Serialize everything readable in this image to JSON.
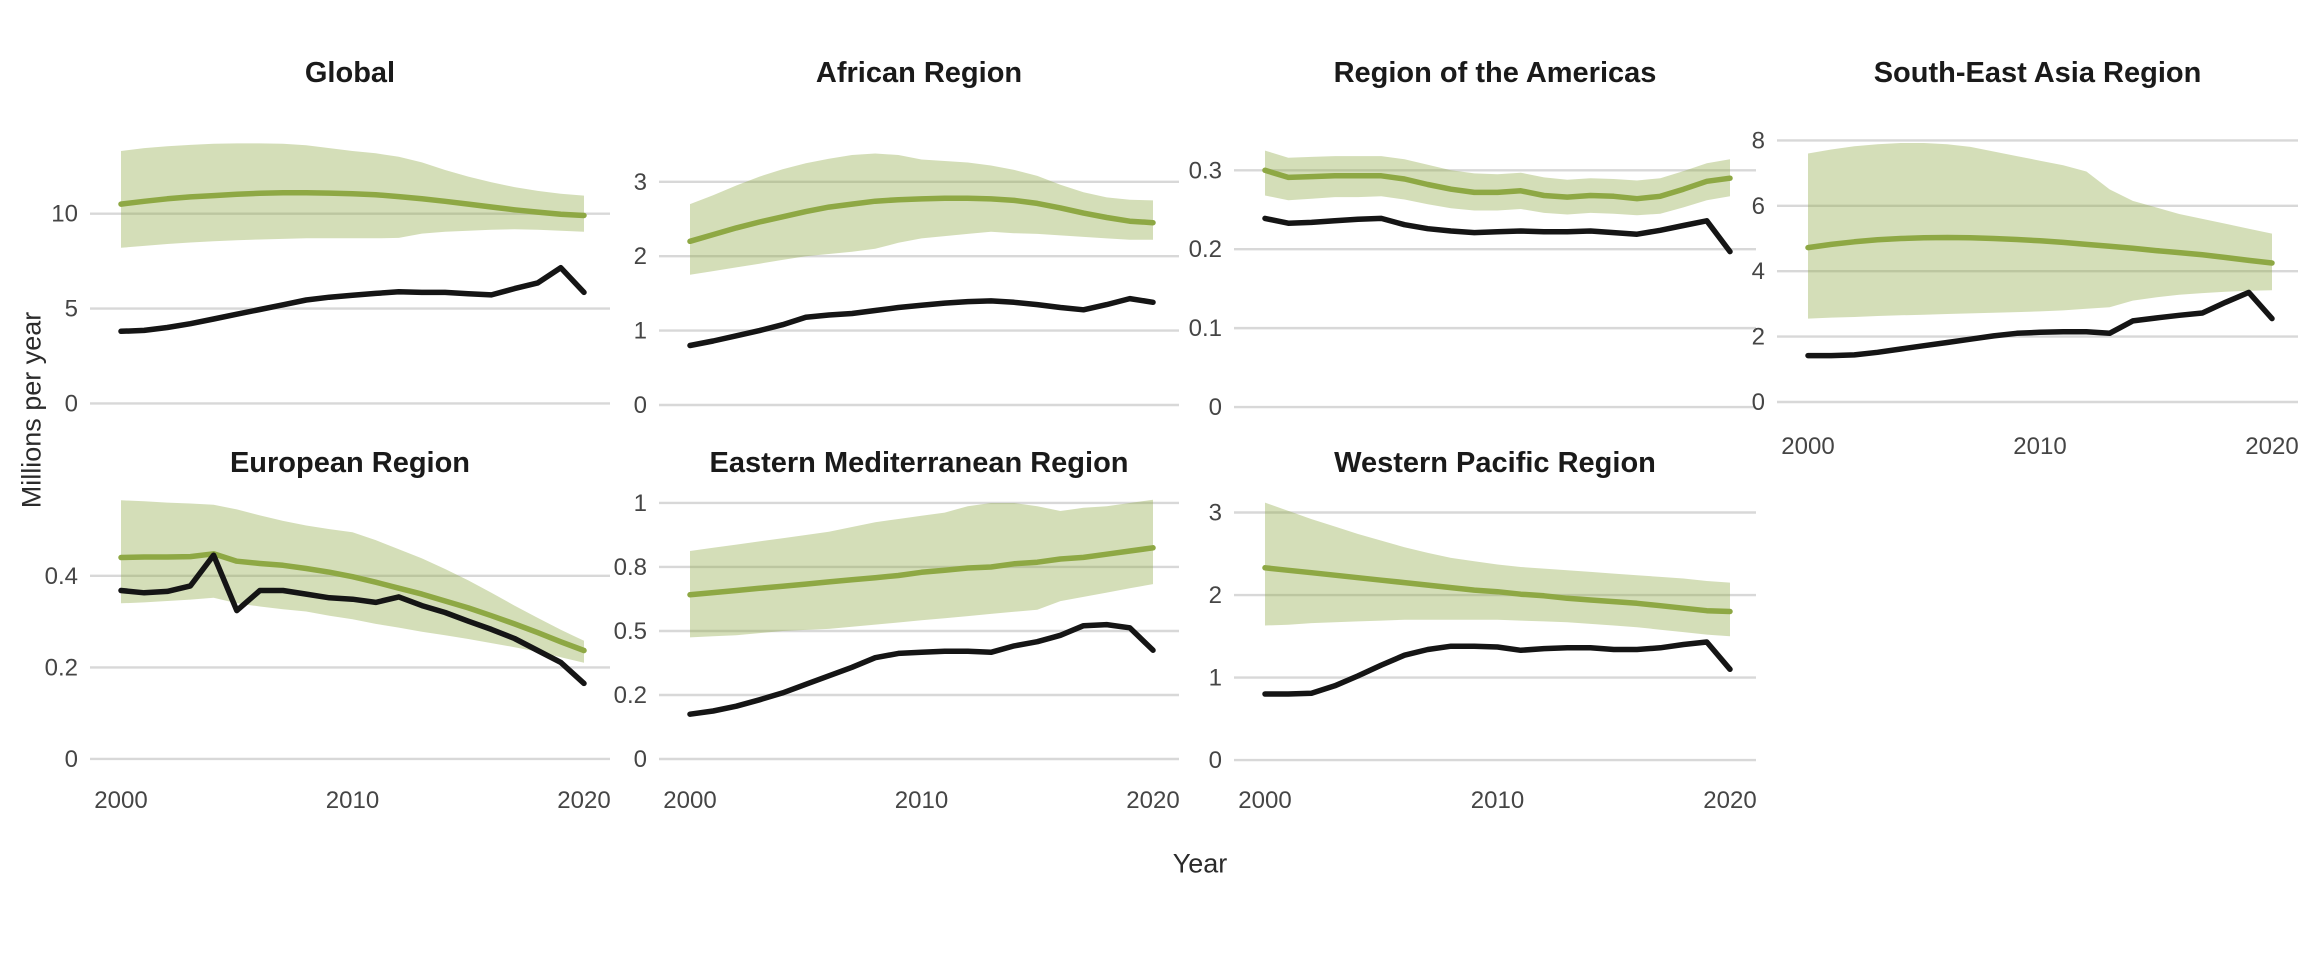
{
  "figure": {
    "y_axis_title": "Millions per year",
    "x_axis_title": "Year",
    "colors": {
      "green_line": "#8EA844",
      "band_fill": "#8EA844",
      "band_opacity": 0.38,
      "black_line": "#151515",
      "gridline": "#D8D8D8",
      "tick_text": "#454545",
      "title_text": "#1A1A1A",
      "background": "#FFFFFF"
    }
  },
  "chart_data": {
    "type": "line",
    "xlabel": "Year",
    "ylabel": "Millions per year",
    "xticks": [
      2000,
      2010,
      2020
    ],
    "grid": "horizontal-only",
    "legend": "none",
    "years": [
      2000,
      2001,
      2002,
      2003,
      2004,
      2005,
      2006,
      2007,
      2008,
      2009,
      2010,
      2011,
      2012,
      2013,
      2014,
      2015,
      2016,
      2017,
      2018,
      2019,
      2020
    ],
    "panels": [
      {
        "title": "Global",
        "yticks": [
          0,
          5,
          10
        ],
        "series": [
          {
            "name": "green_line",
            "color": "#8EA844",
            "values": [
              10.5,
              10.65,
              10.78,
              10.88,
              10.95,
              11.02,
              11.07,
              11.1,
              11.1,
              11.08,
              11.05,
              11.0,
              10.9,
              10.78,
              10.65,
              10.5,
              10.35,
              10.2,
              10.08,
              9.97,
              9.9
            ]
          },
          {
            "name": "black_line",
            "color": "#151515",
            "values": [
              3.8,
              3.85,
              4.0,
              4.2,
              4.45,
              4.7,
              4.95,
              5.2,
              5.45,
              5.6,
              5.7,
              5.8,
              5.88,
              5.85,
              5.85,
              5.78,
              5.72,
              6.05,
              6.35,
              7.15,
              5.85
            ]
          }
        ],
        "band": {
          "name": "uncertainty_interval",
          "upper": [
            13.3,
            13.45,
            13.55,
            13.62,
            13.68,
            13.7,
            13.7,
            13.68,
            13.6,
            13.45,
            13.3,
            13.18,
            13.0,
            12.7,
            12.3,
            11.95,
            11.65,
            11.4,
            11.2,
            11.05,
            10.95
          ],
          "lower": [
            8.2,
            8.3,
            8.4,
            8.48,
            8.55,
            8.6,
            8.64,
            8.67,
            8.7,
            8.7,
            8.7,
            8.7,
            8.72,
            8.95,
            9.05,
            9.1,
            9.15,
            9.18,
            9.15,
            9.1,
            9.05
          ]
        }
      },
      {
        "title": "African Region",
        "yticks": [
          0,
          1,
          2,
          3
        ],
        "series": [
          {
            "name": "green_line",
            "color": "#8EA844",
            "values": [
              2.2,
              2.29,
              2.38,
              2.46,
              2.53,
              2.6,
              2.66,
              2.7,
              2.74,
              2.76,
              2.77,
              2.78,
              2.78,
              2.77,
              2.75,
              2.71,
              2.65,
              2.58,
              2.52,
              2.47,
              2.45
            ]
          },
          {
            "name": "black_line",
            "color": "#151515",
            "values": [
              0.8,
              0.86,
              0.93,
              1.0,
              1.08,
              1.18,
              1.21,
              1.23,
              1.27,
              1.31,
              1.34,
              1.37,
              1.39,
              1.4,
              1.38,
              1.35,
              1.31,
              1.28,
              1.35,
              1.43,
              1.38
            ]
          }
        ],
        "band": {
          "name": "uncertainty_interval",
          "upper": [
            2.7,
            2.82,
            2.95,
            3.07,
            3.17,
            3.25,
            3.31,
            3.36,
            3.38,
            3.36,
            3.3,
            3.28,
            3.26,
            3.22,
            3.16,
            3.08,
            2.96,
            2.86,
            2.79,
            2.76,
            2.75
          ],
          "lower": [
            1.75,
            1.8,
            1.85,
            1.9,
            1.95,
            2.0,
            2.03,
            2.06,
            2.1,
            2.18,
            2.24,
            2.27,
            2.3,
            2.33,
            2.31,
            2.3,
            2.28,
            2.26,
            2.24,
            2.22,
            2.22
          ]
        }
      },
      {
        "title": "Region of the Americas",
        "yticks": [
          0,
          0.1,
          0.2,
          0.3
        ],
        "series": [
          {
            "name": "green_line",
            "color": "#8EA844",
            "values": [
              0.3,
              0.291,
              0.292,
              0.293,
              0.293,
              0.293,
              0.289,
              0.282,
              0.276,
              0.272,
              0.272,
              0.274,
              0.268,
              0.266,
              0.268,
              0.267,
              0.264,
              0.267,
              0.276,
              0.286,
              0.29
            ]
          },
          {
            "name": "black_line",
            "color": "#151515",
            "values": [
              0.239,
              0.233,
              0.234,
              0.236,
              0.238,
              0.239,
              0.231,
              0.226,
              0.223,
              0.221,
              0.222,
              0.223,
              0.222,
              0.222,
              0.223,
              0.221,
              0.219,
              0.224,
              0.23,
              0.236,
              0.197
            ]
          }
        ],
        "band": {
          "name": "uncertainty_interval",
          "upper": [
            0.325,
            0.316,
            0.317,
            0.318,
            0.318,
            0.318,
            0.314,
            0.307,
            0.3,
            0.296,
            0.295,
            0.297,
            0.291,
            0.288,
            0.29,
            0.289,
            0.287,
            0.29,
            0.299,
            0.309,
            0.314
          ],
          "lower": [
            0.268,
            0.262,
            0.264,
            0.266,
            0.266,
            0.267,
            0.263,
            0.257,
            0.252,
            0.249,
            0.249,
            0.251,
            0.246,
            0.244,
            0.246,
            0.245,
            0.243,
            0.245,
            0.253,
            0.262,
            0.267
          ]
        }
      },
      {
        "title": "South-East Asia Region",
        "yticks": [
          0,
          2,
          4,
          6,
          8
        ],
        "series": [
          {
            "name": "green_line",
            "color": "#8EA844",
            "values": [
              4.72,
              4.82,
              4.9,
              4.96,
              5.0,
              5.02,
              5.03,
              5.02,
              5.0,
              4.97,
              4.93,
              4.88,
              4.82,
              4.76,
              4.7,
              4.63,
              4.57,
              4.5,
              4.42,
              4.33,
              4.25
            ]
          },
          {
            "name": "black_line",
            "color": "#151515",
            "values": [
              1.42,
              1.42,
              1.44,
              1.52,
              1.62,
              1.72,
              1.82,
              1.92,
              2.02,
              2.1,
              2.13,
              2.15,
              2.15,
              2.1,
              2.48,
              2.57,
              2.65,
              2.72,
              3.05,
              3.35,
              2.55
            ]
          }
        ],
        "band": {
          "name": "uncertainty_interval",
          "upper": [
            7.6,
            7.72,
            7.82,
            7.88,
            7.92,
            7.92,
            7.88,
            7.8,
            7.66,
            7.52,
            7.38,
            7.24,
            7.05,
            6.5,
            6.15,
            5.95,
            5.75,
            5.6,
            5.45,
            5.3,
            5.15
          ],
          "lower": [
            2.55,
            2.58,
            2.6,
            2.63,
            2.65,
            2.67,
            2.69,
            2.71,
            2.73,
            2.75,
            2.77,
            2.8,
            2.85,
            2.9,
            3.1,
            3.2,
            3.28,
            3.33,
            3.37,
            3.4,
            3.42
          ]
        }
      },
      {
        "title": "European Region",
        "yticks": [
          0,
          0.2,
          0.4
        ],
        "series": [
          {
            "name": "green_line",
            "color": "#8EA844",
            "values": [
              0.44,
              0.441,
              0.441,
              0.442,
              0.448,
              0.432,
              0.427,
              0.423,
              0.416,
              0.408,
              0.398,
              0.386,
              0.373,
              0.36,
              0.345,
              0.33,
              0.313,
              0.295,
              0.276,
              0.256,
              0.237
            ]
          },
          {
            "name": "black_line",
            "color": "#151515",
            "values": [
              0.368,
              0.363,
              0.366,
              0.378,
              0.445,
              0.324,
              0.368,
              0.368,
              0.36,
              0.352,
              0.349,
              0.342,
              0.354,
              0.335,
              0.32,
              0.301,
              0.283,
              0.263,
              0.237,
              0.211,
              0.165
            ]
          }
        ],
        "band": {
          "name": "uncertainty_interval",
          "upper": [
            0.565,
            0.563,
            0.56,
            0.558,
            0.555,
            0.545,
            0.532,
            0.52,
            0.51,
            0.502,
            0.495,
            0.478,
            0.458,
            0.438,
            0.415,
            0.39,
            0.363,
            0.335,
            0.308,
            0.282,
            0.258
          ],
          "lower": [
            0.34,
            0.342,
            0.345,
            0.348,
            0.352,
            0.34,
            0.333,
            0.327,
            0.322,
            0.313,
            0.305,
            0.295,
            0.287,
            0.278,
            0.27,
            0.262,
            0.253,
            0.244,
            0.234,
            0.222,
            0.21
          ]
        }
      },
      {
        "title": "Eastern Mediterranean Region",
        "yticks": [
          0,
          0.2,
          0.5,
          0.8,
          1
        ],
        "ytick_spacing": "equal",
        "series": [
          {
            "name": "green_line",
            "color": "#8EA844",
            "values": [
              0.67,
              0.68,
              0.69,
              0.7,
              0.71,
              0.72,
              0.73,
              0.74,
              0.75,
              0.76,
              0.775,
              0.785,
              0.795,
              0.8,
              0.81,
              0.815,
              0.825,
              0.83,
              0.84,
              0.85,
              0.86
            ]
          },
          {
            "name": "black_line",
            "color": "#151515",
            "values": [
              0.14,
              0.15,
              0.165,
              0.185,
              0.21,
              0.25,
              0.29,
              0.33,
              0.375,
              0.395,
              0.4,
              0.405,
              0.405,
              0.4,
              0.43,
              0.45,
              0.48,
              0.525,
              0.53,
              0.515,
              0.41
            ]
          }
        ],
        "band": {
          "name": "uncertainty_interval",
          "upper": [
            0.85,
            0.86,
            0.87,
            0.88,
            0.89,
            0.9,
            0.91,
            0.925,
            0.94,
            0.95,
            0.96,
            0.97,
            0.99,
            1.0,
            1.0,
            0.99,
            0.975,
            0.985,
            0.99,
            1.0,
            1.01
          ],
          "lower": [
            0.47,
            0.475,
            0.48,
            0.49,
            0.5,
            0.505,
            0.51,
            0.52,
            0.53,
            0.54,
            0.55,
            0.56,
            0.57,
            0.58,
            0.59,
            0.6,
            0.64,
            0.66,
            0.68,
            0.7,
            0.72
          ]
        }
      },
      {
        "title": "Western Pacific Region",
        "yticks": [
          0,
          1,
          2,
          3
        ],
        "series": [
          {
            "name": "green_line",
            "color": "#8EA844",
            "values": [
              2.33,
              2.3,
              2.27,
              2.24,
              2.21,
              2.18,
              2.15,
              2.12,
              2.09,
              2.06,
              2.04,
              2.01,
              1.99,
              1.96,
              1.94,
              1.92,
              1.9,
              1.87,
              1.84,
              1.81,
              1.8
            ]
          },
          {
            "name": "black_line",
            "color": "#151515",
            "values": [
              0.8,
              0.8,
              0.81,
              0.9,
              1.02,
              1.15,
              1.27,
              1.34,
              1.38,
              1.38,
              1.37,
              1.33,
              1.35,
              1.36,
              1.36,
              1.34,
              1.34,
              1.36,
              1.4,
              1.43,
              1.1
            ]
          }
        ],
        "band": {
          "name": "uncertainty_interval",
          "upper": [
            3.12,
            3.02,
            2.92,
            2.83,
            2.74,
            2.66,
            2.58,
            2.51,
            2.45,
            2.41,
            2.37,
            2.34,
            2.32,
            2.3,
            2.28,
            2.26,
            2.24,
            2.22,
            2.2,
            2.17,
            2.15
          ],
          "lower": [
            1.63,
            1.64,
            1.66,
            1.67,
            1.68,
            1.69,
            1.7,
            1.7,
            1.7,
            1.7,
            1.7,
            1.69,
            1.68,
            1.67,
            1.65,
            1.63,
            1.61,
            1.58,
            1.55,
            1.52,
            1.5
          ]
        }
      }
    ]
  }
}
